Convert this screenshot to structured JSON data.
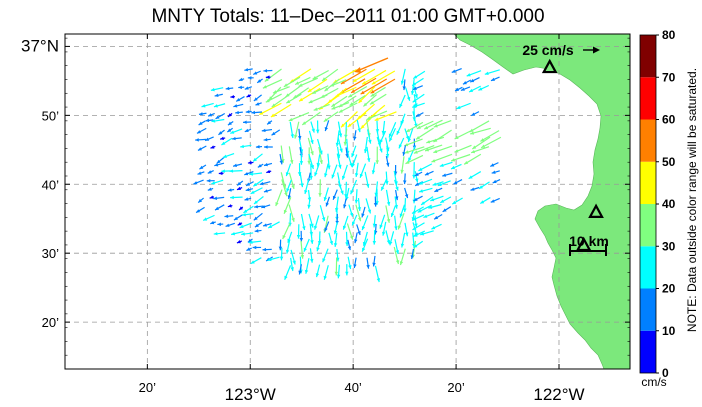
{
  "chart_data": {
    "type": "vector-map",
    "title": "MNTY Totals: 11–Dec–2011 01:00 GMT+0.000",
    "lat_ticks": [
      {
        "value": 37.0,
        "label": "37°N"
      },
      {
        "value": 36.8333,
        "label": "50’"
      },
      {
        "value": 36.6667,
        "label": "40’"
      },
      {
        "value": 36.5,
        "label": "30’"
      },
      {
        "value": 36.3333,
        "label": "20’"
      }
    ],
    "lon_ticks": [
      {
        "value": -123.3333,
        "label": "20’"
      },
      {
        "value": -123.0,
        "label": "123°W"
      },
      {
        "value": -122.6667,
        "label": "40’"
      },
      {
        "value": -122.3333,
        "label": "20’"
      },
      {
        "value": -122.0,
        "label": "122°W"
      }
    ],
    "lon_range": [
      -123.6,
      -121.77
    ],
    "lat_range": [
      36.22,
      37.03
    ],
    "grid": true,
    "colorbar": {
      "ticks": [
        0,
        10,
        20,
        30,
        40,
        50,
        60,
        70,
        80
      ],
      "colors": [
        "#0000ff",
        "#0080ff",
        "#00ffff",
        "#80ff80",
        "#ffff00",
        "#ff8000",
        "#ff0000",
        "#800000"
      ],
      "unit": "cm/s",
      "note": "NOTE: Data outside color range will be saturated."
    },
    "legend": {
      "label": "25 cm/s",
      "speed": 25
    },
    "scale_bar": {
      "label": "10 km"
    },
    "sites": [
      {
        "lon": -122.03,
        "lat": 36.95
      },
      {
        "lon": -121.88,
        "lat": 36.6
      },
      {
        "lon": -121.92,
        "lat": 36.52
      }
    ]
  }
}
